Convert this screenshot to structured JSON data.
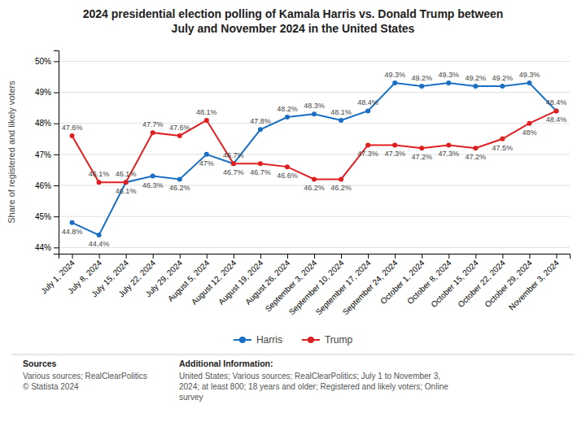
{
  "chart_data": {
    "type": "line",
    "title": "2024 presidential election polling of Kamala Harris vs. Donald Trump between\nJuly and November 2024 in the United States",
    "y_label": "Share of registered and likely voters",
    "categories": [
      "July 1, 2024",
      "July 8, 2024",
      "July 15, 2024",
      "July 22, 2024",
      "July 29, 2024",
      "August 5, 2024",
      "August 12, 2024",
      "August 19, 2024",
      "August 26, 2024",
      "September 3, 2024",
      "September 10, 2024",
      "September 17, 2024",
      "September 24, 2024",
      "October 1, 2024",
      "October 8, 2024",
      "October 15, 2024",
      "October 22, 2024",
      "October 29, 2024",
      "November 3, 2024"
    ],
    "series": [
      {
        "name": "Harris",
        "color": "#1a6fc4",
        "marker": "circle",
        "values": [
          44.8,
          44.4,
          46.1,
          46.3,
          46.2,
          47.0,
          46.7,
          47.8,
          48.2,
          48.3,
          48.1,
          48.4,
          49.3,
          49.2,
          49.3,
          49.2,
          49.2,
          49.3,
          48.4
        ],
        "value_labels": [
          "44.8%",
          "44.4%",
          "46.1%",
          "46.3%",
          "46.2%",
          "47%",
          "46.7%",
          "47.8%",
          "48.2%",
          "48.3%",
          "48.1%",
          "48.4%",
          "49.3%",
          "49.2%",
          "49.3%",
          "49.2%",
          "49.2%",
          "49.3%",
          "48.4%"
        ]
      },
      {
        "name": "Trump",
        "color": "#e02020",
        "marker": "circle",
        "values": [
          47.6,
          46.1,
          46.1,
          47.7,
          47.6,
          48.1,
          46.7,
          46.7,
          46.6,
          46.2,
          46.2,
          47.3,
          47.3,
          47.2,
          47.3,
          47.2,
          47.5,
          48.0,
          48.4
        ],
        "value_labels": [
          "47.6%",
          "46.1%",
          "46.1%",
          "47.7%",
          "47.6%",
          "48.1%",
          "46.7%",
          "46.7%",
          "46.6%",
          "46.2%",
          "46.2%",
          "47.3%",
          "47.3%",
          "47.2%",
          "47.3%",
          "47.2%",
          "47.5%",
          "48%",
          "48.4%"
        ]
      }
    ],
    "ylim": [
      43.8,
      50.35
    ],
    "yticks": [
      {
        "value": 44,
        "label": "44%"
      },
      {
        "value": 45,
        "label": "45%"
      },
      {
        "value": 46,
        "label": "46%"
      },
      {
        "value": 47,
        "label": "47%"
      },
      {
        "value": 48,
        "label": "48%"
      },
      {
        "value": 49,
        "label": "49%"
      },
      {
        "value": 50,
        "label": "50%"
      }
    ],
    "grid": true,
    "legend": "bottom",
    "data_labels": true,
    "annotations": [
      "Sources",
      "Various sources; RealClearPolitics\n© Statista 2024",
      "Additional Information:",
      "United States; Various sources; RealClearPolitics; July 1 to November 3,\n2024; at least 800; 18 years and older; Registered and likely voters; Online\nsurvey"
    ]
  }
}
